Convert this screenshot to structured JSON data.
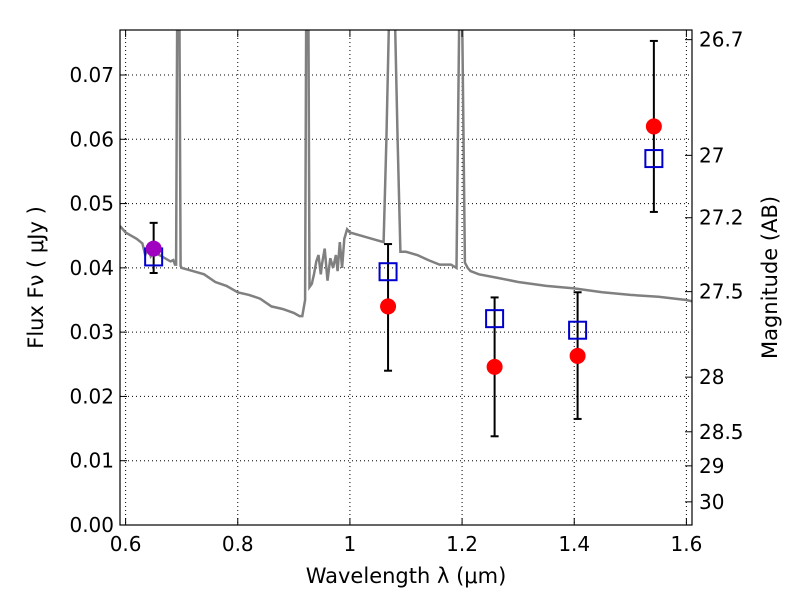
{
  "chart_data": {
    "type": "scatter",
    "xlabel": "Wavelength  λ (μm)",
    "ylabel": "Flux  Fν  ( μJy )",
    "y2label": "Magnitude (AB)",
    "xlim": [
      0.59,
      1.61
    ],
    "ylim": [
      0.0,
      0.077
    ],
    "xticks": [
      0.6,
      0.8,
      1.0,
      1.2,
      1.4,
      1.6
    ],
    "xtick_labels": [
      "0.6",
      "0.8",
      "1",
      "1.2",
      "1.4",
      "1.6"
    ],
    "yticks": [
      0.0,
      0.01,
      0.02,
      0.03,
      0.04,
      0.05,
      0.06,
      0.07
    ],
    "ytick_labels": [
      "0.00",
      "0.01",
      "0.02",
      "0.03",
      "0.04",
      "0.05",
      "0.06",
      "0.07"
    ],
    "y2ticks": [
      {
        "flux": 0.0755,
        "label": "26.7"
      },
      {
        "flux": 0.0575,
        "label": "27"
      },
      {
        "flux": 0.0478,
        "label": "27.2"
      },
      {
        "flux": 0.0363,
        "label": "27.5"
      },
      {
        "flux": 0.023,
        "label": "28"
      },
      {
        "flux": 0.0145,
        "label": "28.5"
      },
      {
        "flux": 0.0092,
        "label": "29"
      },
      {
        "flux": 0.0036,
        "label": "30"
      }
    ],
    "grid": true,
    "colors": {
      "observed": "#ff0000",
      "model": "#0000cc",
      "overlap": "#a000c0",
      "spectrum": "#808080",
      "errorbar": "#000000"
    },
    "observed": [
      {
        "x": 0.65,
        "y": 0.043,
        "err_low": 0.0392,
        "err_high": 0.047,
        "overlap": true
      },
      {
        "x": 1.068,
        "y": 0.034,
        "err_low": 0.024,
        "err_high": 0.0437
      },
      {
        "x": 1.258,
        "y": 0.0246,
        "err_low": 0.0138,
        "err_high": 0.0354
      },
      {
        "x": 1.406,
        "y": 0.0263,
        "err_low": 0.0165,
        "err_high": 0.0362
      },
      {
        "x": 1.542,
        "y": 0.062,
        "err_low": 0.0487,
        "err_high": 0.0753
      }
    ],
    "model_photometry": [
      {
        "x": 0.65,
        "y": 0.0417
      },
      {
        "x": 1.068,
        "y": 0.0394
      },
      {
        "x": 1.258,
        "y": 0.0321
      },
      {
        "x": 1.406,
        "y": 0.0303
      },
      {
        "x": 1.542,
        "y": 0.057
      }
    ],
    "spectrum": [
      [
        0.59,
        0.0465
      ],
      [
        0.6,
        0.0455
      ],
      [
        0.61,
        0.045
      ],
      [
        0.62,
        0.0445
      ],
      [
        0.63,
        0.0438
      ],
      [
        0.635,
        0.042
      ],
      [
        0.64,
        0.0432
      ],
      [
        0.645,
        0.0418
      ],
      [
        0.65,
        0.0425
      ],
      [
        0.66,
        0.042
      ],
      [
        0.67,
        0.0415
      ],
      [
        0.68,
        0.041
      ],
      [
        0.685,
        0.0412
      ],
      [
        0.688,
        0.0405
      ],
      [
        0.69,
        0.0405
      ],
      [
        0.692,
        0.08
      ],
      [
        0.696,
        0.08
      ],
      [
        0.698,
        0.0403
      ],
      [
        0.7,
        0.04
      ],
      [
        0.72,
        0.0395
      ],
      [
        0.74,
        0.039
      ],
      [
        0.76,
        0.0378
      ],
      [
        0.78,
        0.0372
      ],
      [
        0.8,
        0.0362
      ],
      [
        0.82,
        0.0358
      ],
      [
        0.84,
        0.0352
      ],
      [
        0.86,
        0.034
      ],
      [
        0.88,
        0.0336
      ],
      [
        0.9,
        0.033
      ],
      [
        0.91,
        0.0325
      ],
      [
        0.915,
        0.0325
      ],
      [
        0.92,
        0.035
      ],
      [
        0.922,
        0.08
      ],
      [
        0.926,
        0.08
      ],
      [
        0.928,
        0.037
      ],
      [
        0.932,
        0.0375
      ],
      [
        0.936,
        0.039
      ],
      [
        0.94,
        0.041
      ],
      [
        0.944,
        0.042
      ],
      [
        0.948,
        0.039
      ],
      [
        0.95,
        0.0405
      ],
      [
        0.955,
        0.043
      ],
      [
        0.96,
        0.038
      ],
      [
        0.965,
        0.0415
      ],
      [
        0.97,
        0.04
      ],
      [
        0.975,
        0.042
      ],
      [
        0.978,
        0.0395
      ],
      [
        0.982,
        0.044
      ],
      [
        0.986,
        0.04
      ],
      [
        0.99,
        0.0445
      ],
      [
        0.995,
        0.046
      ],
      [
        1.0,
        0.0455
      ],
      [
        1.02,
        0.045
      ],
      [
        1.04,
        0.0445
      ],
      [
        1.06,
        0.044
      ],
      [
        1.065,
        0.06
      ],
      [
        1.07,
        0.08
      ],
      [
        1.08,
        0.08
      ],
      [
        1.085,
        0.06
      ],
      [
        1.09,
        0.0425
      ],
      [
        1.1,
        0.0425
      ],
      [
        1.12,
        0.042
      ],
      [
        1.14,
        0.0412
      ],
      [
        1.16,
        0.0405
      ],
      [
        1.18,
        0.0405
      ],
      [
        1.19,
        0.04
      ],
      [
        1.195,
        0.08
      ],
      [
        1.2,
        0.08
      ],
      [
        1.205,
        0.0408
      ],
      [
        1.21,
        0.04
      ],
      [
        1.215,
        0.0395
      ],
      [
        1.23,
        0.039
      ],
      [
        1.26,
        0.0385
      ],
      [
        1.3,
        0.0378
      ],
      [
        1.35,
        0.0372
      ],
      [
        1.4,
        0.0368
      ],
      [
        1.45,
        0.0362
      ],
      [
        1.5,
        0.0358
      ],
      [
        1.55,
        0.0355
      ],
      [
        1.6,
        0.035
      ],
      [
        1.61,
        0.0348
      ]
    ]
  }
}
